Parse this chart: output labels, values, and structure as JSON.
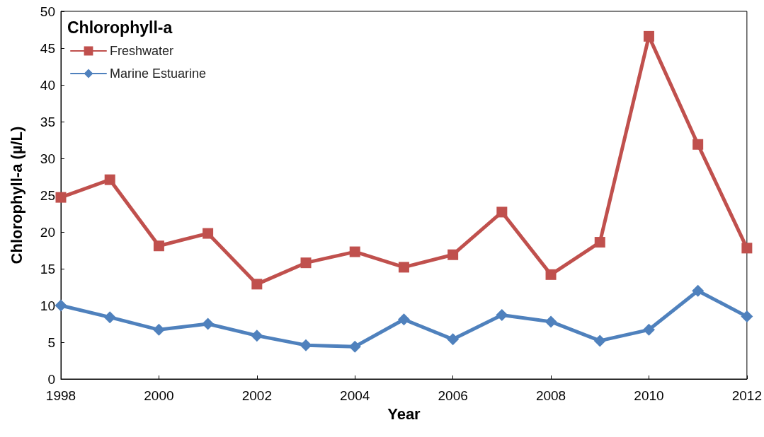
{
  "chart_data": {
    "type": "line",
    "title": "Chlorophyll-a",
    "xlabel": "Year",
    "ylabel": "Chlorophyll-a (µ/L)",
    "x": [
      1998,
      1999,
      2000,
      2001,
      2002,
      2003,
      2004,
      2005,
      2006,
      2007,
      2008,
      2009,
      2010,
      2011,
      2012
    ],
    "series": [
      {
        "name": "Freshwater",
        "color": "#c0504d",
        "marker": "square",
        "values": [
          24.7,
          27.1,
          18.1,
          19.8,
          12.9,
          15.8,
          17.3,
          15.2,
          16.9,
          22.7,
          14.2,
          18.6,
          46.6,
          31.9,
          17.8
        ]
      },
      {
        "name": "Marine Estuarine",
        "color": "#4f81bd",
        "marker": "diamond",
        "values": [
          10.0,
          8.4,
          6.7,
          7.5,
          5.9,
          4.6,
          4.4,
          8.1,
          5.4,
          8.7,
          7.8,
          5.2,
          6.7,
          12.0,
          8.5
        ]
      }
    ],
    "xlim": [
      1998,
      2012
    ],
    "xticks": [
      1998,
      2000,
      2002,
      2004,
      2006,
      2008,
      2010,
      2012
    ],
    "ylim": [
      0,
      50
    ],
    "yticks": [
      0,
      5,
      10,
      15,
      20,
      25,
      30,
      35,
      40,
      45,
      50
    ],
    "grid": false,
    "legend": "top left",
    "line_style": "solid"
  }
}
